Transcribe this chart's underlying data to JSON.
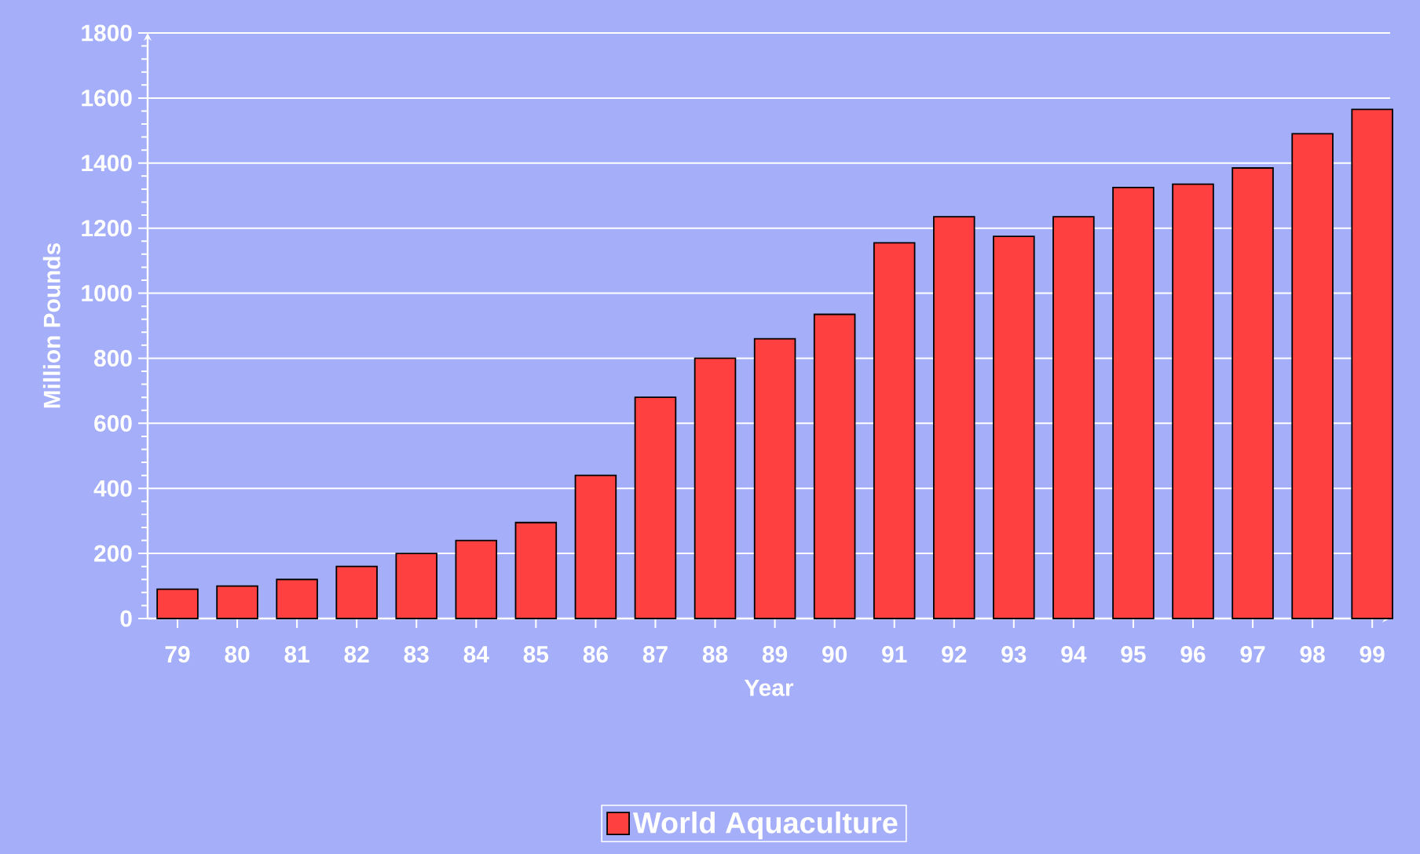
{
  "chart_data": {
    "type": "bar",
    "xlabel": "Year",
    "ylabel": "Million Pounds",
    "categories": [
      "79",
      "80",
      "81",
      "82",
      "83",
      "84",
      "85",
      "86",
      "87",
      "88",
      "89",
      "90",
      "91",
      "92",
      "93",
      "94",
      "95",
      "96",
      "97",
      "98",
      "99"
    ],
    "series": [
      {
        "name": "World Aquaculture",
        "color": "#ff4040",
        "values": [
          90,
          100,
          120,
          160,
          200,
          240,
          295,
          440,
          680,
          800,
          860,
          935,
          1155,
          1235,
          1175,
          1235,
          1325,
          1335,
          1385,
          1490,
          1565
        ]
      }
    ],
    "ylim": [
      0,
      1800
    ],
    "yticks": [
      0,
      200,
      400,
      600,
      800,
      1000,
      1200,
      1400,
      1600,
      1800
    ],
    "grid": "y",
    "legend": "bottom"
  }
}
